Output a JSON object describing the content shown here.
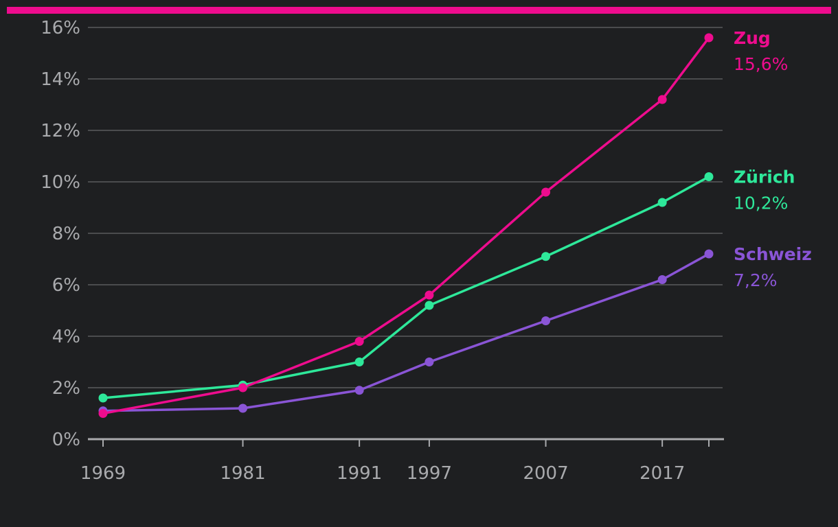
{
  "colors": {
    "background": "#1e1f21",
    "accent_bar": "#ee0c8e",
    "gridline": "#5a5b5e",
    "axis": "#a9aaad",
    "tick_text": "#a9aaad"
  },
  "chart_data": {
    "type": "line",
    "title": "",
    "xlabel": "",
    "ylabel": "",
    "x": [
      1969,
      1981,
      1991,
      1997,
      2007,
      2017,
      2021
    ],
    "x_tick_labels": [
      "1969",
      "1981",
      "1991",
      "1997",
      "2007",
      "2017"
    ],
    "xlim": [
      1969,
      2021
    ],
    "y_tick_labels": [
      "0%",
      "2%",
      "4%",
      "6%",
      "8%",
      "10%",
      "12%",
      "14%",
      "16%"
    ],
    "ylim": [
      0,
      16
    ],
    "grid": true,
    "legend": "inline-right",
    "series": [
      {
        "name": "Zug",
        "end_label": "15,6%",
        "color": "#ee0c8e",
        "values": [
          1.0,
          2.0,
          3.8,
          5.6,
          9.6,
          13.2,
          15.6
        ]
      },
      {
        "name": "Zürich",
        "end_label": "10,2%",
        "color": "#2ee89a",
        "values": [
          1.6,
          2.1,
          3.0,
          5.2,
          7.1,
          9.2,
          10.2
        ]
      },
      {
        "name": "Schweiz",
        "end_label": "7,2%",
        "color": "#8a55d6",
        "values": [
          1.1,
          1.2,
          1.9,
          3.0,
          4.6,
          6.2,
          7.2
        ]
      }
    ]
  }
}
